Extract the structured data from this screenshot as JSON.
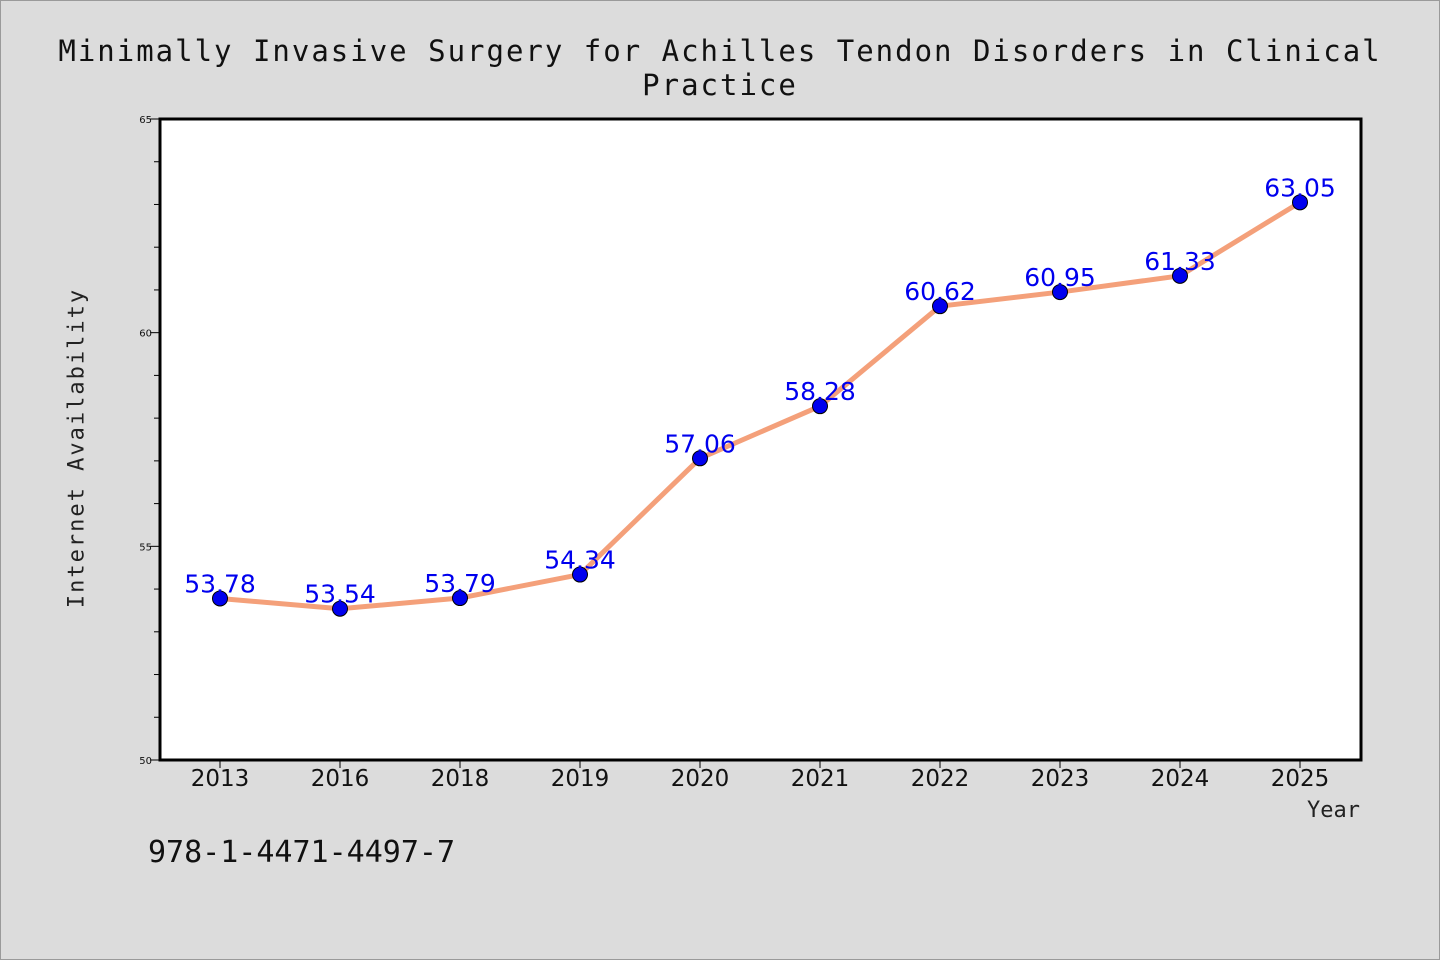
{
  "page": {
    "isbn_text": "978-1-4471-4497-7"
  },
  "chart_data": {
    "type": "line",
    "title": "Minimally Invasive Surgery for Achilles Tendon Disorders in Clinical Practice",
    "xlabel": "Year",
    "ylabel": "Internet Availability",
    "categories": [
      "2013",
      "2016",
      "2018",
      "2019",
      "2020",
      "2021",
      "2022",
      "2023",
      "2024",
      "2025"
    ],
    "series": [
      {
        "values": [
          53.78,
          53.54,
          53.79,
          54.34,
          57.06,
          58.28,
          60.62,
          60.95,
          61.33,
          63.05
        ],
        "data_labels": [
          "53.78",
          "53.54",
          "53.79",
          "54.34",
          "57.06",
          "58.28",
          "60.62",
          "60.95",
          "61.33",
          "63.05"
        ]
      }
    ],
    "ylim": [
      50,
      65
    ],
    "yticks": [
      50,
      55,
      60,
      65
    ],
    "grid": false,
    "colors": {
      "line": "#f4a07a",
      "marker": "#0000ee",
      "labels": "#0000ee",
      "background": "#dcdcdc",
      "plot_background": "#ffffff"
    }
  }
}
